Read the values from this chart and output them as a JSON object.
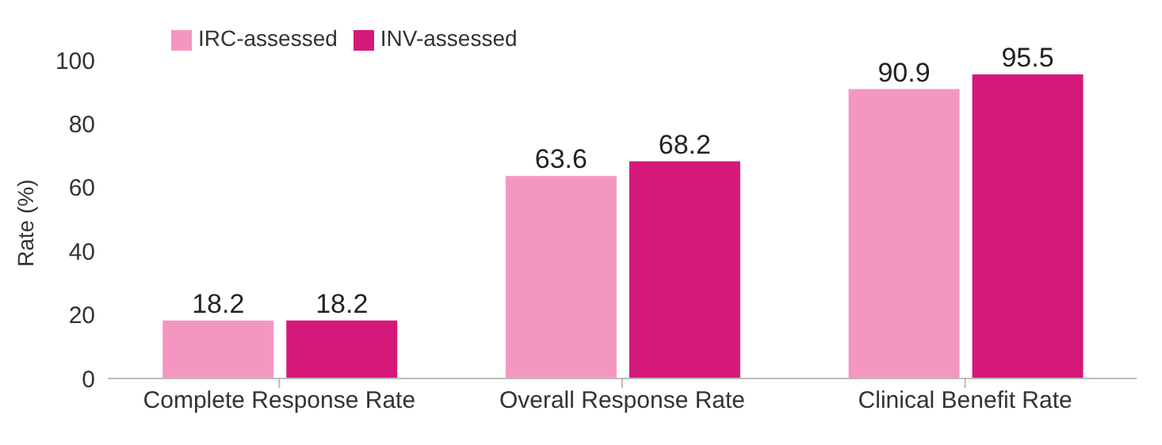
{
  "chart_data": {
    "type": "bar",
    "ylabel": "Rate (%)",
    "categories": [
      "Complete Response Rate",
      "Overall Response Rate",
      "Clinical Benefit Rate"
    ],
    "series": [
      {
        "name": "IRC-assessed",
        "color": "#f497c0",
        "values": [
          18.2,
          63.6,
          90.9
        ]
      },
      {
        "name": "INV-assessed",
        "color": "#d4197a",
        "values": [
          18.2,
          68.2,
          95.5
        ]
      }
    ],
    "ylim": [
      0,
      100
    ],
    "yticks": [
      0,
      20,
      40,
      60,
      80,
      100
    ],
    "data_labels": true,
    "legend": "top left",
    "grid": false
  }
}
